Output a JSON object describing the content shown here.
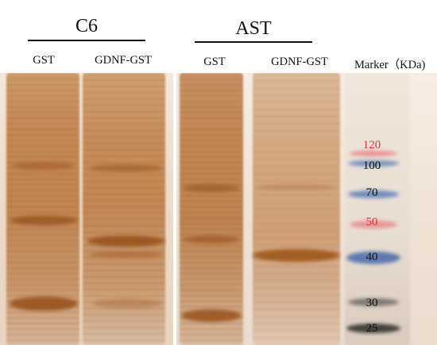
{
  "groups": {
    "c6": {
      "title": "C6",
      "lanes": [
        "GST",
        "GDNF-GST"
      ]
    },
    "ast": {
      "title": "AST",
      "lanes": [
        "GST",
        "GDNF-GST"
      ]
    }
  },
  "marker": {
    "title": "Marker（KDa)",
    "labels": [
      {
        "text": "120",
        "color": "#e8313a"
      },
      {
        "text": "100",
        "color": "#111111"
      },
      {
        "text": "70",
        "color": "#111111"
      },
      {
        "text": "50",
        "color": "#e8313a"
      },
      {
        "text": "40",
        "color": "#111111"
      },
      {
        "text": "30",
        "color": "#111111"
      },
      {
        "text": "25",
        "color": "#111111"
      }
    ]
  },
  "colors": {
    "gel_band": "#9a5a22",
    "marker_blue": "#4a72b8",
    "marker_red": "#e8313a",
    "marker_dark": "#222222"
  }
}
